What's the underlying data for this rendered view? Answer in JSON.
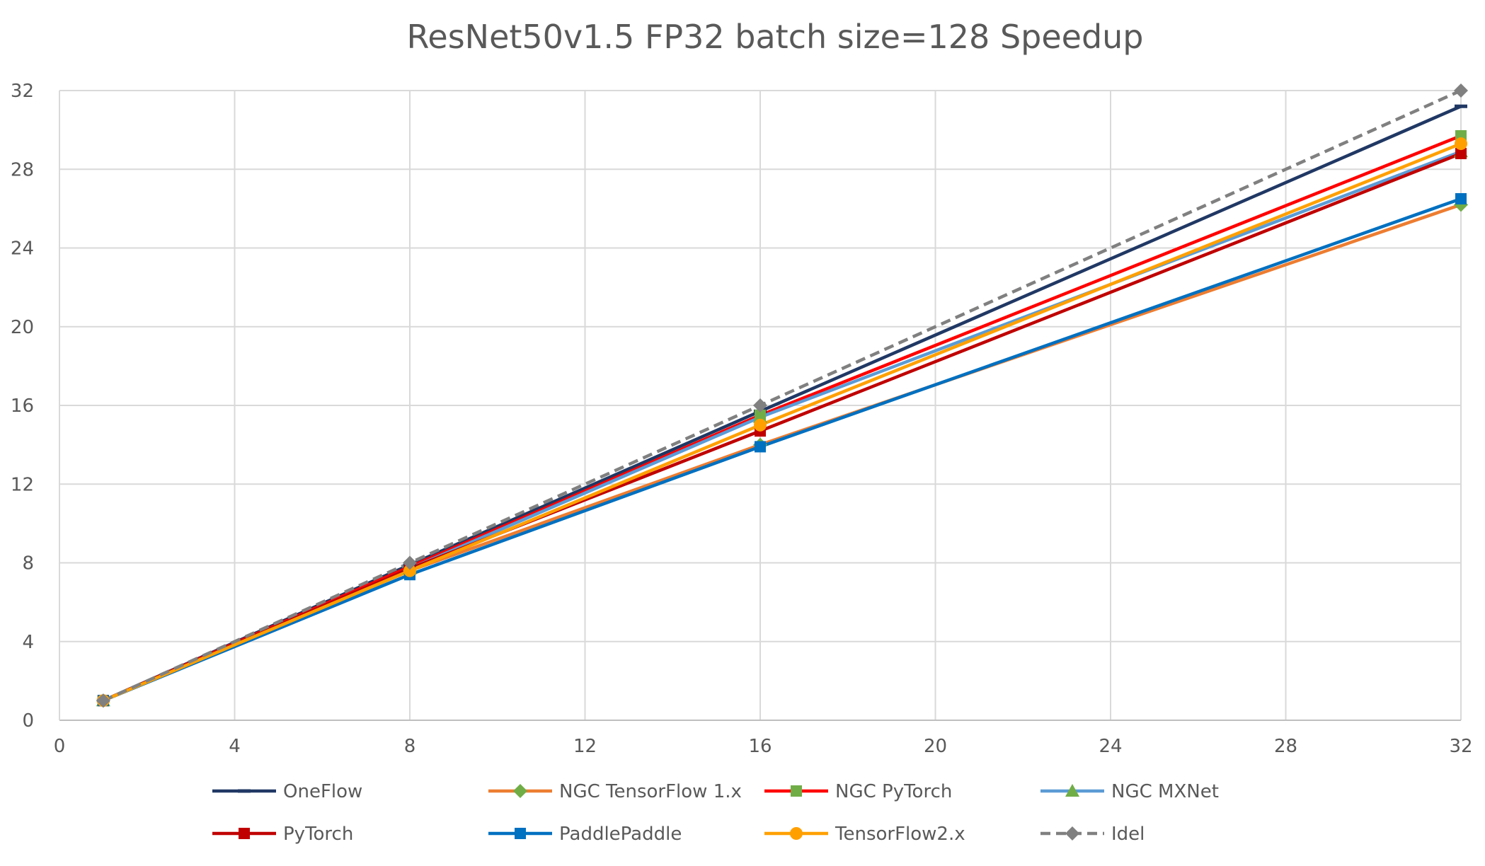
{
  "chart_data": {
    "type": "line",
    "title": "ResNet50v1.5 FP32 batch size=128 Speedup",
    "xlabel": "",
    "ylabel": "",
    "xlim": [
      0,
      32
    ],
    "ylim": [
      0,
      32
    ],
    "x_ticks": [
      0,
      4,
      8,
      12,
      16,
      20,
      24,
      28,
      32
    ],
    "y_ticks": [
      0,
      4,
      8,
      12,
      16,
      20,
      24,
      28,
      32
    ],
    "grid": true,
    "legend_position": "bottom",
    "x": [
      1,
      8,
      16,
      32
    ],
    "series": [
      {
        "name": "OneFlow",
        "values": [
          1,
          7.9,
          15.7,
          31.2
        ],
        "color": "#203864",
        "marker": "dash",
        "dashed": false
      },
      {
        "name": "NGC TensorFlow 1.x",
        "values": [
          1,
          7.6,
          14.0,
          26.2
        ],
        "color": "#ED7D31",
        "marker": "diamond",
        "marker_color": "#70AD47",
        "dashed": false
      },
      {
        "name": "NGC PyTorch",
        "values": [
          1,
          7.8,
          15.5,
          29.7
        ],
        "color": "#FF0000",
        "marker": "square",
        "marker_color": "#70AD47",
        "dashed": false
      },
      {
        "name": "NGC MXNet",
        "values": [
          1,
          7.7,
          15.4,
          28.9
        ],
        "color": "#5B9BD5",
        "marker": "triangle",
        "marker_color": "#70AD47",
        "dashed": false
      },
      {
        "name": "PyTorch",
        "values": [
          1,
          7.7,
          14.7,
          28.8
        ],
        "color": "#C00000",
        "marker": "square",
        "marker_color": "#C00000",
        "dashed": false
      },
      {
        "name": "PaddlePaddle",
        "values": [
          1,
          7.4,
          13.9,
          26.5
        ],
        "color": "#0070C0",
        "marker": "square",
        "marker_color": "#0070C0",
        "dashed": false
      },
      {
        "name": "TensorFlow2.x",
        "values": [
          1,
          7.6,
          15.0,
          29.3
        ],
        "color": "#FFA000",
        "marker": "circle",
        "marker_color": "#FFA000",
        "dashed": false
      },
      {
        "name": "Idel",
        "values": [
          1,
          8,
          16,
          32
        ],
        "color": "#808080",
        "marker": "diamond",
        "marker_color": "#808080",
        "dashed": true
      }
    ]
  }
}
